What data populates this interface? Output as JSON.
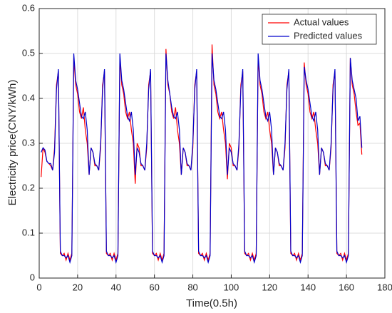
{
  "chart_data": {
    "type": "line",
    "xlabel": "Time(0.5h)",
    "ylabel": "Electricity price(CNY/kWh)",
    "x": [
      1,
      2,
      3,
      4,
      5,
      6,
      7,
      8,
      9,
      10,
      11,
      12,
      13,
      14,
      15,
      16,
      17,
      18,
      19,
      20,
      21,
      22,
      23,
      24,
      25,
      26,
      27,
      28,
      29,
      30,
      31,
      32,
      33,
      34,
      35,
      36,
      37,
      38,
      39,
      40,
      41,
      42,
      43,
      44,
      45,
      46,
      47,
      48,
      49,
      50,
      51,
      52,
      53,
      54,
      55,
      56,
      57,
      58,
      59,
      60,
      61,
      62,
      63,
      64,
      65,
      66,
      67,
      68,
      69,
      70,
      71,
      72,
      73,
      74,
      75,
      76,
      77,
      78,
      79,
      80,
      81,
      82,
      83,
      84,
      85,
      86,
      87,
      88,
      89,
      90,
      91,
      92,
      93,
      94,
      95,
      96,
      97,
      98,
      99,
      100,
      101,
      102,
      103,
      104,
      105,
      106,
      107,
      108,
      109,
      110,
      111,
      112,
      113,
      114,
      115,
      116,
      117,
      118,
      119,
      120,
      121,
      122,
      123,
      124,
      125,
      126,
      127,
      128,
      129,
      130,
      131,
      132,
      133,
      134,
      135,
      136,
      137,
      138,
      139,
      140,
      141,
      142,
      143,
      144,
      145,
      146,
      147,
      148,
      149,
      150,
      151,
      152,
      153,
      154,
      155,
      156,
      157,
      158,
      159,
      160,
      161,
      162,
      163,
      164,
      165,
      166,
      167,
      168
    ],
    "series": [
      {
        "name": "Actual values",
        "color": "#ff0000",
        "values": [
          0.225,
          0.29,
          0.28,
          0.26,
          0.255,
          0.25,
          0.24,
          0.29,
          0.43,
          0.46,
          0.055,
          0.05,
          0.055,
          0.04,
          0.055,
          0.04,
          0.055,
          0.49,
          0.43,
          0.41,
          0.37,
          0.355,
          0.38,
          0.33,
          0.3,
          0.23,
          0.29,
          0.28,
          0.25,
          0.25,
          0.24,
          0.29,
          0.43,
          0.46,
          0.055,
          0.05,
          0.055,
          0.04,
          0.055,
          0.04,
          0.055,
          0.49,
          0.43,
          0.41,
          0.37,
          0.355,
          0.37,
          0.33,
          0.3,
          0.21,
          0.3,
          0.29,
          0.25,
          0.25,
          0.24,
          0.29,
          0.43,
          0.46,
          0.055,
          0.05,
          0.055,
          0.04,
          0.055,
          0.04,
          0.055,
          0.51,
          0.43,
          0.41,
          0.37,
          0.355,
          0.38,
          0.33,
          0.3,
          0.23,
          0.29,
          0.28,
          0.25,
          0.25,
          0.24,
          0.29,
          0.43,
          0.46,
          0.055,
          0.05,
          0.055,
          0.04,
          0.055,
          0.04,
          0.055,
          0.52,
          0.43,
          0.41,
          0.37,
          0.355,
          0.37,
          0.33,
          0.3,
          0.22,
          0.3,
          0.29,
          0.25,
          0.25,
          0.24,
          0.29,
          0.43,
          0.46,
          0.055,
          0.05,
          0.055,
          0.04,
          0.055,
          0.04,
          0.055,
          0.49,
          0.43,
          0.41,
          0.37,
          0.355,
          0.37,
          0.33,
          0.3,
          0.23,
          0.29,
          0.28,
          0.25,
          0.25,
          0.24,
          0.29,
          0.43,
          0.46,
          0.055,
          0.05,
          0.055,
          0.04,
          0.055,
          0.04,
          0.055,
          0.48,
          0.43,
          0.41,
          0.37,
          0.355,
          0.37,
          0.33,
          0.3,
          0.23,
          0.29,
          0.28,
          0.25,
          0.25,
          0.24,
          0.29,
          0.43,
          0.46,
          0.055,
          0.05,
          0.055,
          0.04,
          0.055,
          0.04,
          0.055,
          0.49,
          0.43,
          0.41,
          0.37,
          0.34,
          0.345,
          0.275
        ]
      },
      {
        "name": "Predicted values",
        "color": "#0000cc",
        "values": [
          0.28,
          0.29,
          0.285,
          0.26,
          0.255,
          0.255,
          0.24,
          0.28,
          0.42,
          0.465,
          0.06,
          0.05,
          0.05,
          0.045,
          0.05,
          0.035,
          0.05,
          0.5,
          0.44,
          0.42,
          0.39,
          0.36,
          0.355,
          0.37,
          0.33,
          0.23,
          0.29,
          0.28,
          0.255,
          0.25,
          0.24,
          0.3,
          0.42,
          0.465,
          0.06,
          0.05,
          0.05,
          0.045,
          0.05,
          0.035,
          0.05,
          0.5,
          0.44,
          0.42,
          0.39,
          0.36,
          0.35,
          0.37,
          0.33,
          0.23,
          0.29,
          0.28,
          0.255,
          0.25,
          0.24,
          0.3,
          0.42,
          0.465,
          0.06,
          0.05,
          0.05,
          0.045,
          0.05,
          0.035,
          0.05,
          0.5,
          0.44,
          0.41,
          0.38,
          0.36,
          0.355,
          0.37,
          0.33,
          0.23,
          0.29,
          0.28,
          0.255,
          0.25,
          0.24,
          0.3,
          0.42,
          0.465,
          0.06,
          0.05,
          0.05,
          0.045,
          0.05,
          0.035,
          0.05,
          0.5,
          0.44,
          0.42,
          0.39,
          0.36,
          0.355,
          0.37,
          0.33,
          0.23,
          0.29,
          0.28,
          0.255,
          0.25,
          0.24,
          0.3,
          0.42,
          0.465,
          0.06,
          0.05,
          0.05,
          0.045,
          0.05,
          0.035,
          0.05,
          0.5,
          0.44,
          0.42,
          0.39,
          0.36,
          0.35,
          0.37,
          0.33,
          0.23,
          0.29,
          0.28,
          0.255,
          0.25,
          0.24,
          0.3,
          0.42,
          0.465,
          0.06,
          0.05,
          0.05,
          0.045,
          0.05,
          0.035,
          0.05,
          0.47,
          0.44,
          0.42,
          0.39,
          0.36,
          0.35,
          0.37,
          0.33,
          0.23,
          0.29,
          0.28,
          0.255,
          0.25,
          0.24,
          0.3,
          0.42,
          0.465,
          0.06,
          0.05,
          0.05,
          0.045,
          0.05,
          0.035,
          0.05,
          0.49,
          0.44,
          0.42,
          0.4,
          0.35,
          0.36,
          0.29
        ]
      }
    ],
    "xlim": [
      0,
      180
    ],
    "xticks": [
      0,
      20,
      40,
      60,
      80,
      100,
      120,
      140,
      160,
      180
    ],
    "ylim": [
      0,
      0.6
    ],
    "yticks": [
      0,
      0.1,
      0.2,
      0.3,
      0.4,
      0.5,
      0.6
    ],
    "grid": true,
    "legend": "top-right"
  }
}
